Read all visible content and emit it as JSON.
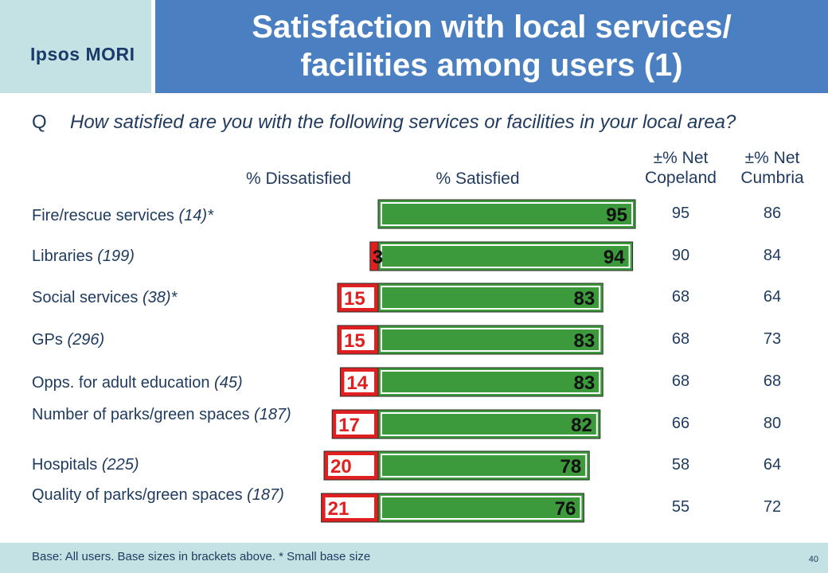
{
  "brand": {
    "logo_text": "Ipsos MORI",
    "colors": {
      "logo_bg": "#c4e2e4",
      "title_bg": "#4a7fc1",
      "satisfied": "#3c9a3c",
      "dissatisfied": "#e02020"
    }
  },
  "title": {
    "line1": "Satisfaction with local services/",
    "line2": "facilities among users (1)"
  },
  "question": {
    "letter": "Q",
    "text": "How satisfied are you with the following services or facilities in your local area?"
  },
  "headers": {
    "dissatisfied": "% Dissatisfied",
    "satisfied": "% Satisfied",
    "net_copeland_line1": "±% Net",
    "net_copeland_line2": "Copeland",
    "net_cumbria_line1": "±% Net",
    "net_cumbria_line2": "Cumbria"
  },
  "chart_data": {
    "type": "bar",
    "orientation": "horizontal-diverging",
    "categories": [
      {
        "label": "Fire/rescue services",
        "base": "(14)*"
      },
      {
        "label": "Libraries",
        "base": "(199)"
      },
      {
        "label": "Social services",
        "base": "(38)*"
      },
      {
        "label": "GPs",
        "base": "(296)"
      },
      {
        "label": "Opps. for adult education",
        "base": "(45)"
      },
      {
        "label": "Number of parks/green spaces",
        "base": "(187)"
      },
      {
        "label": "Hospitals",
        "base": "(225)"
      },
      {
        "label": "Quality of parks/green spaces",
        "base": "(187)"
      }
    ],
    "series": [
      {
        "name": "% Dissatisfied",
        "values": [
          0,
          3,
          15,
          15,
          14,
          17,
          20,
          21
        ],
        "labels": [
          "",
          "3",
          "15",
          "15",
          "14",
          "17",
          "20",
          "21"
        ]
      },
      {
        "name": "% Satisfied",
        "values": [
          95,
          94,
          83,
          83,
          83,
          82,
          78,
          76
        ],
        "labels": [
          "95",
          "94",
          "83",
          "83",
          "83",
          "82",
          "78",
          "76"
        ]
      }
    ],
    "net_copeland": [
      "95",
      "90",
      "68",
      "68",
      "68",
      "66",
      "58",
      "55"
    ],
    "net_cumbria": [
      "86",
      "84",
      "64",
      "73",
      "68",
      "80",
      "64",
      "72"
    ]
  },
  "footer": {
    "base_text": "Base: All users.  Base sizes in brackets above.  * Small base size",
    "page_number": "40"
  }
}
